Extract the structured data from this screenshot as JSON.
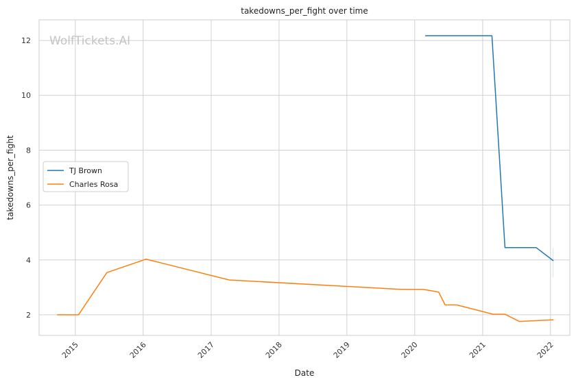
{
  "chart_data": {
    "type": "line",
    "title": "takedowns_per_fight over time",
    "xlabel": "Date",
    "ylabel": "takedowns_per_fight",
    "watermark": "WolfTickets.AI",
    "xlim": [
      "2014-06-20",
      "2022-04-15"
    ],
    "ylim": [
      1.25,
      12.75
    ],
    "x_ticks": [
      "2015-01-01",
      "2016-01-01",
      "2017-01-01",
      "2018-01-01",
      "2019-01-01",
      "2020-01-01",
      "2021-01-01",
      "2022-01-01"
    ],
    "x_tick_labels": [
      "2015",
      "2016",
      "2017",
      "2018",
      "2019",
      "2020",
      "2021",
      "2022"
    ],
    "y_ticks": [
      2,
      4,
      6,
      8,
      10,
      12
    ],
    "y_tick_labels": [
      "2",
      "4",
      "6",
      "8",
      "10",
      "12"
    ],
    "grid": true,
    "legend_position": "center-left",
    "series": [
      {
        "name": "TJ Brown",
        "color": "#1f77b4",
        "points": [
          {
            "x": "2020-02-29",
            "y": 12.17
          },
          {
            "x": "2021-02-20",
            "y": 12.17
          },
          {
            "x": "2021-05-01",
            "y": 4.45
          },
          {
            "x": "2021-10-16",
            "y": 4.45
          },
          {
            "x": "2022-01-15",
            "y": 3.98
          }
        ]
      },
      {
        "name": "Charles Rosa",
        "color": "#ff7f0e",
        "points": [
          {
            "x": "2014-09-27",
            "y": 2.0
          },
          {
            "x": "2015-01-18",
            "y": 2.0
          },
          {
            "x": "2015-06-20",
            "y": 3.54
          },
          {
            "x": "2016-01-17",
            "y": 4.03
          },
          {
            "x": "2017-04-08",
            "y": 3.27
          },
          {
            "x": "2019-10-18",
            "y": 2.93
          },
          {
            "x": "2020-02-15",
            "y": 2.93
          },
          {
            "x": "2020-05-09",
            "y": 2.83
          },
          {
            "x": "2020-06-13",
            "y": 2.36
          },
          {
            "x": "2020-08-15",
            "y": 2.36
          },
          {
            "x": "2021-02-27",
            "y": 2.02
          },
          {
            "x": "2021-05-01",
            "y": 2.02
          },
          {
            "x": "2021-07-17",
            "y": 1.76
          },
          {
            "x": "2022-01-15",
            "y": 1.82
          }
        ]
      }
    ]
  }
}
